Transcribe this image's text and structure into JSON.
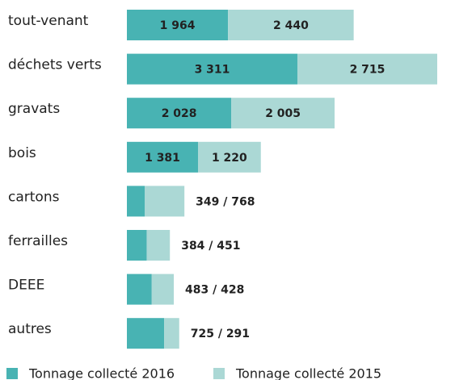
{
  "chart_data": {
    "type": "stacked-bar-horizontal",
    "categories": [
      "tout-venant",
      "déchets verts",
      "gravats",
      "bois",
      "cartons",
      "ferrailles",
      "DEEE",
      "autres"
    ],
    "series": [
      {
        "name": "Tonnage collecté 2016",
        "color": "#48b3b3",
        "values": [
          1964,
          3311,
          2028,
          1381,
          349,
          384,
          483,
          725
        ],
        "value_labels": [
          "1 964",
          "3 311",
          "2 028",
          "1 381",
          null,
          null,
          null,
          null
        ]
      },
      {
        "name": "Tonnage collecté 2015",
        "color": "#abd8d5",
        "values": [
          2440,
          2715,
          2005,
          1220,
          768,
          451,
          428,
          291
        ],
        "value_labels": [
          "2 440",
          "2 715",
          "2 005",
          "1 220",
          null,
          null,
          null,
          null
        ]
      }
    ],
    "pair_labels": [
      null,
      null,
      null,
      null,
      "349 / 768",
      "384 / 451",
      "483 / 428",
      "725 / 291"
    ]
  }
}
